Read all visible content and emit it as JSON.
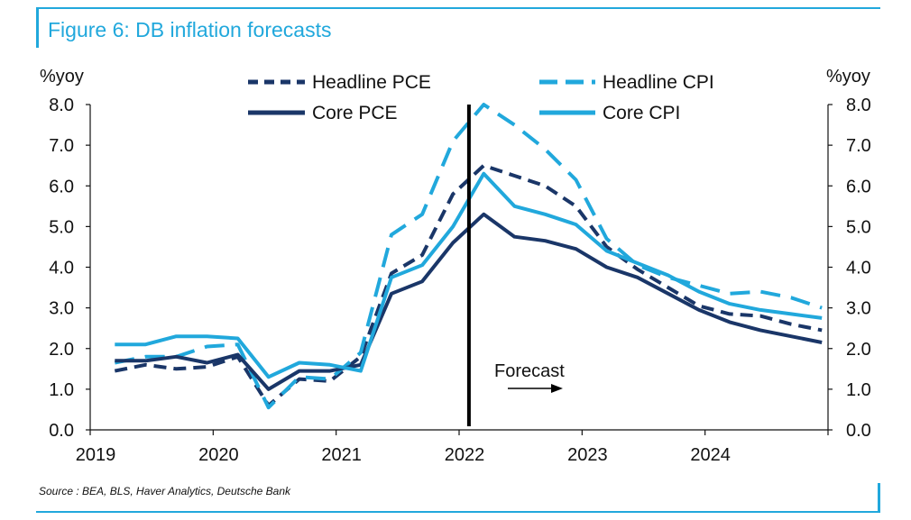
{
  "title": "Figure 6: DB inflation forecasts",
  "source": "Source : BEA, BLS, Haver Analytics, Deutsche Bank",
  "chart_data": {
    "type": "line",
    "y_unit_left": "%yoy",
    "y_unit_right": "%yoy",
    "ylim": [
      0,
      8
    ],
    "y_ticks": [
      "0.0",
      "1.0",
      "2.0",
      "3.0",
      "4.0",
      "5.0",
      "6.0",
      "7.0",
      "8.0"
    ],
    "xlim": [
      2019.0,
      2025.0
    ],
    "x_ticks": [
      "2019",
      "2020",
      "2021",
      "2022",
      "2023",
      "2024"
    ],
    "x_tick_values": [
      2019,
      2020,
      2021,
      2022,
      2023,
      2024
    ],
    "forecast_line_x": 2022.08,
    "annotation": "Forecast",
    "grid": false,
    "legend_position": "top",
    "series": [
      {
        "name": "Headline PCE",
        "color": "#1a3668",
        "style": "dashed",
        "x": [
          2019.2,
          2019.45,
          2019.7,
          2019.95,
          2020.2,
          2020.45,
          2020.7,
          2020.95,
          2021.2,
          2021.45,
          2021.7,
          2021.95,
          2022.2,
          2022.45,
          2022.7,
          2022.95,
          2023.2,
          2023.45,
          2023.7,
          2023.95,
          2024.2,
          2024.45,
          2024.7,
          2024.95
        ],
        "values": [
          1.45,
          1.6,
          1.5,
          1.55,
          1.8,
          0.6,
          1.25,
          1.2,
          1.8,
          3.85,
          4.3,
          5.8,
          6.5,
          6.25,
          6.0,
          5.5,
          4.5,
          3.95,
          3.5,
          3.05,
          2.85,
          2.8,
          2.6,
          2.45
        ]
      },
      {
        "name": "Headline CPI",
        "color": "#21a8dc",
        "style": "dashed",
        "x": [
          2019.2,
          2019.45,
          2019.7,
          2019.95,
          2020.2,
          2020.45,
          2020.7,
          2020.95,
          2021.2,
          2021.45,
          2021.7,
          2021.95,
          2022.2,
          2022.45,
          2022.7,
          2022.95,
          2023.2,
          2023.45,
          2023.7,
          2023.95,
          2024.2,
          2024.45,
          2024.7,
          2024.95
        ],
        "values": [
          1.65,
          1.8,
          1.8,
          2.05,
          2.1,
          0.55,
          1.3,
          1.25,
          1.9,
          4.8,
          5.3,
          7.1,
          8.0,
          7.5,
          6.9,
          6.15,
          4.7,
          4.05,
          3.75,
          3.55,
          3.35,
          3.4,
          3.25,
          3.0
        ]
      },
      {
        "name": "Core PCE",
        "color": "#1a3668",
        "style": "solid",
        "x": [
          2019.2,
          2019.45,
          2019.7,
          2019.95,
          2020.2,
          2020.45,
          2020.7,
          2020.95,
          2021.2,
          2021.45,
          2021.7,
          2021.95,
          2022.2,
          2022.45,
          2022.7,
          2022.95,
          2023.2,
          2023.45,
          2023.7,
          2023.95,
          2024.2,
          2024.45,
          2024.7,
          2024.95
        ],
        "values": [
          1.7,
          1.7,
          1.8,
          1.65,
          1.85,
          1.0,
          1.45,
          1.45,
          1.6,
          3.35,
          3.65,
          4.6,
          5.3,
          4.75,
          4.65,
          4.45,
          4.0,
          3.75,
          3.35,
          2.95,
          2.65,
          2.45,
          2.3,
          2.15
        ]
      },
      {
        "name": "Core CPI",
        "color": "#21a8dc",
        "style": "solid",
        "x": [
          2019.2,
          2019.45,
          2019.7,
          2019.95,
          2020.2,
          2020.45,
          2020.7,
          2020.95,
          2021.2,
          2021.45,
          2021.7,
          2021.95,
          2022.2,
          2022.45,
          2022.7,
          2022.95,
          2023.2,
          2023.45,
          2023.7,
          2023.95,
          2024.2,
          2024.45,
          2024.7,
          2024.95
        ],
        "values": [
          2.1,
          2.1,
          2.3,
          2.3,
          2.25,
          1.3,
          1.65,
          1.6,
          1.45,
          3.75,
          4.05,
          5.0,
          6.3,
          5.5,
          5.3,
          5.05,
          4.4,
          4.1,
          3.8,
          3.4,
          3.1,
          2.95,
          2.85,
          2.75
        ]
      }
    ]
  }
}
